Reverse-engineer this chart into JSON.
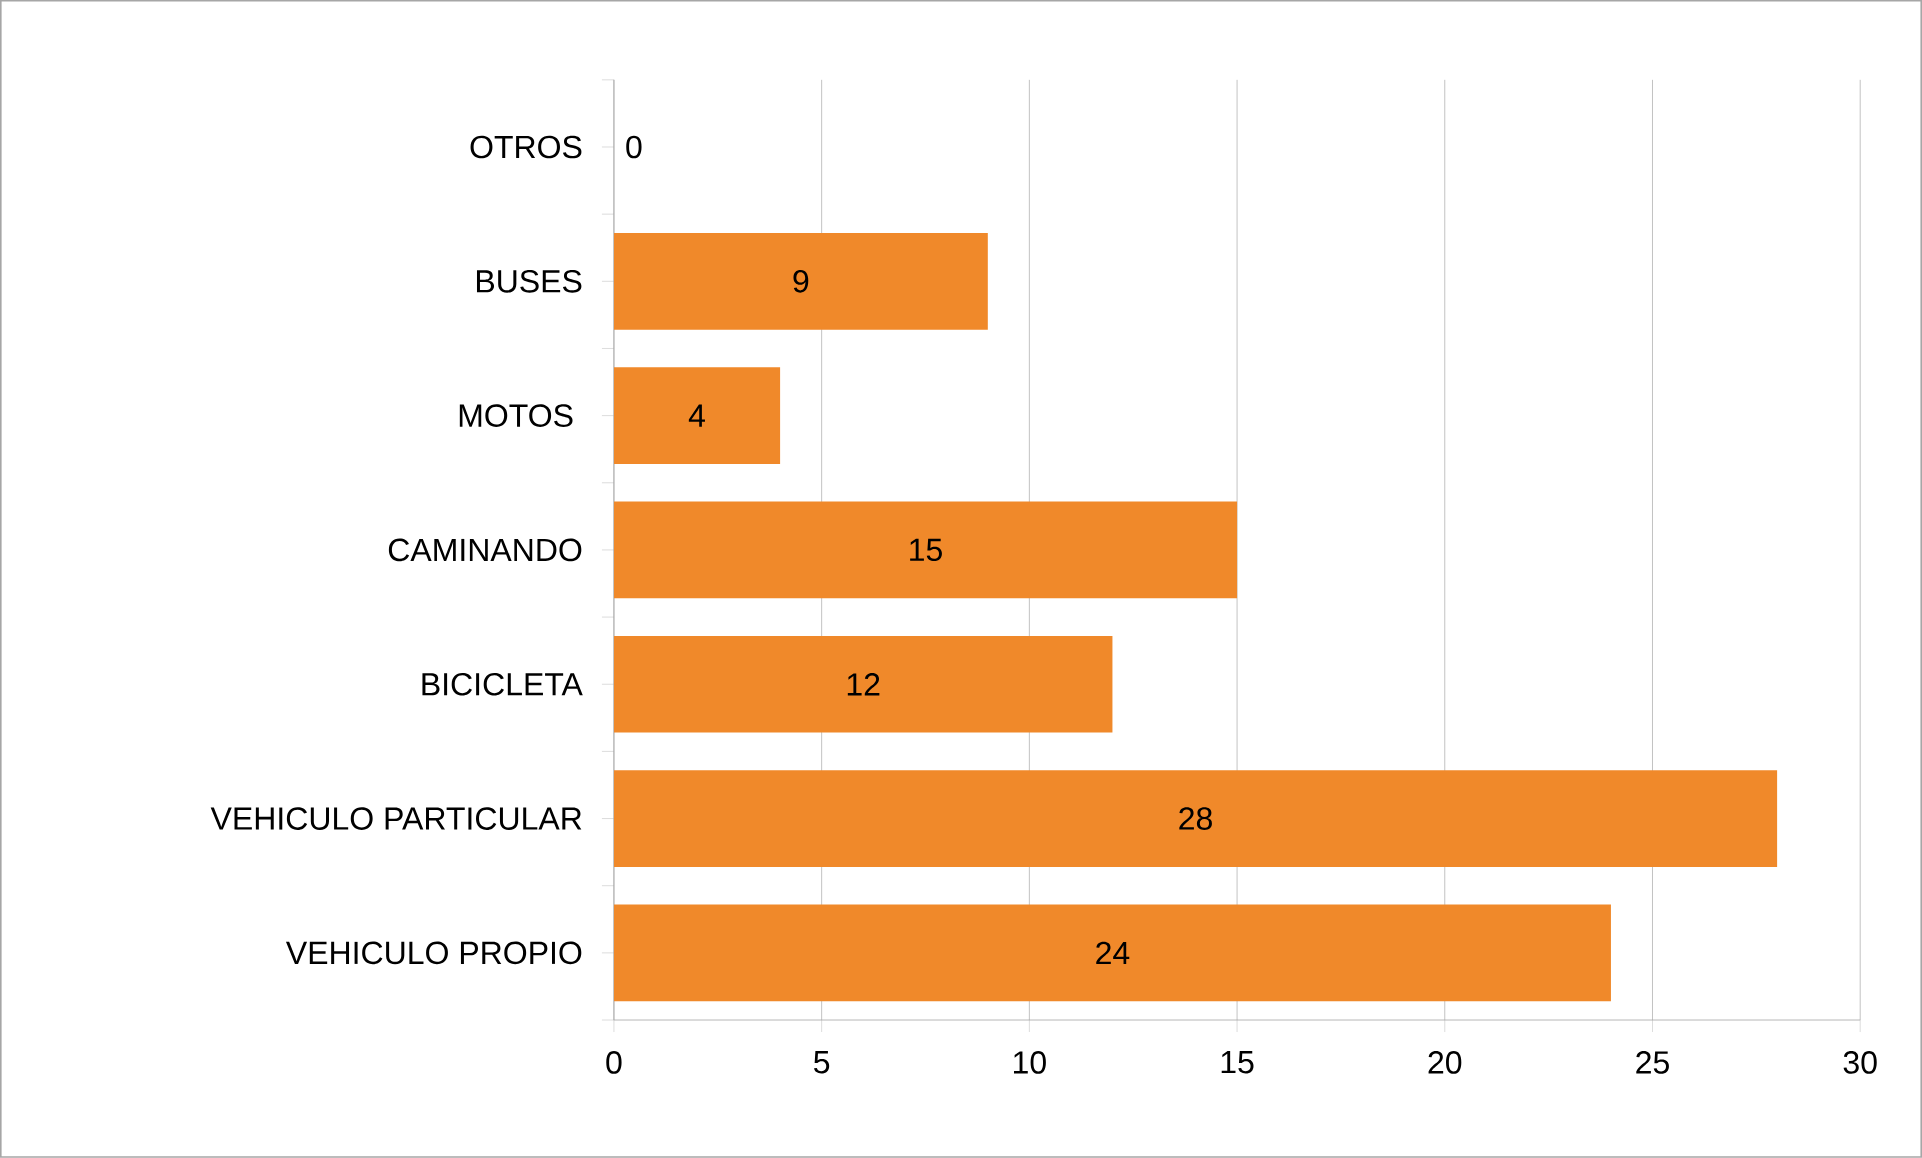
{
  "chart_data": {
    "type": "bar",
    "orientation": "horizontal",
    "categories": [
      "OTROS",
      "BUSES",
      "MOTOS ",
      "CAMINANDO",
      "BICICLETA",
      "VEHICULO PARTICULAR",
      "VEHICULO PROPIO"
    ],
    "values": [
      0,
      9,
      4,
      15,
      12,
      28,
      24
    ],
    "color": "#f0892a",
    "xlim": [
      0,
      30
    ],
    "xticks": [
      0,
      5,
      10,
      15,
      20,
      25,
      30
    ],
    "grid": "x",
    "data_labels": true
  }
}
